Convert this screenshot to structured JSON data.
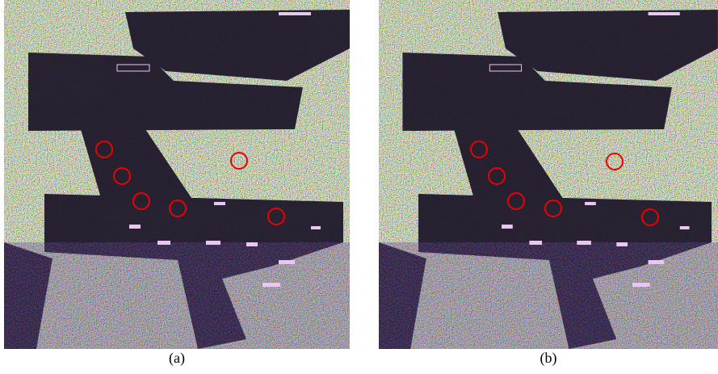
{
  "captions": {
    "a": "(a)",
    "b": "(b)"
  }
}
